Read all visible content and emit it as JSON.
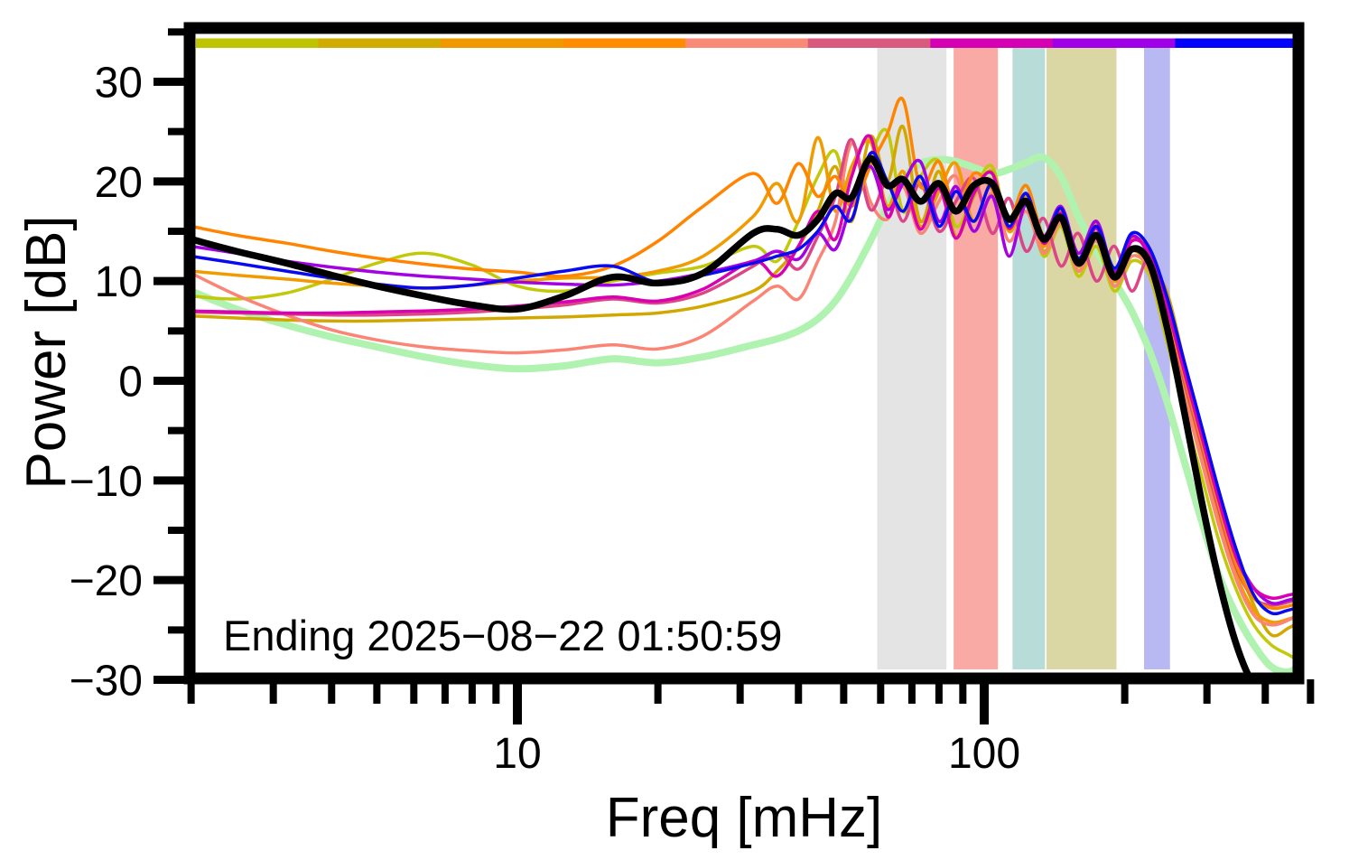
{
  "figure": {
    "annotation": "Ending 2025−08−22 01:50:59"
  },
  "chart_data": {
    "type": "line",
    "title": "",
    "xlabel": "Freq [mHz]",
    "ylabel": "Power [dB]",
    "x_scale": "log",
    "xlim_mHz": [
      2,
      480
    ],
    "ylim_dB": [
      -30,
      35
    ],
    "grid": false,
    "legend": "none",
    "x_major_ticks": [
      10,
      100
    ],
    "x_tick_labels": [
      "10",
      "100"
    ],
    "x_minor_ticks": [
      2,
      3,
      4,
      5,
      6,
      7,
      8,
      9,
      20,
      30,
      40,
      50,
      60,
      70,
      80,
      90,
      200,
      300,
      400,
      500
    ],
    "y_major_ticks": [
      30,
      20,
      10,
      0,
      -10,
      -20,
      -30
    ],
    "y_tick_labels": [
      "30",
      "20",
      "10",
      "0",
      "−10",
      "−20",
      "−30"
    ],
    "y_minor_ticks": [
      35,
      25,
      15,
      5,
      -5,
      -15,
      -25
    ],
    "annotation": "Ending 2025−08−22 01:50:59",
    "top_colorbar": {
      "description": "time-order colorbar, 9 equal segments spanning full frequency axis",
      "colors": [
        "#bfc400",
        "#d2ab00",
        "#f09800",
        "#ff8c00",
        "#f98a76",
        "#d85a7e",
        "#d400b2",
        "#9e00e8",
        "#0202fa"
      ]
    },
    "shaded_bands": [
      {
        "name": "band-gray",
        "f0_mHz": 59,
        "f1_mHz": 83,
        "color": "#e4e4e4"
      },
      {
        "name": "band-salmon",
        "f0_mHz": 86,
        "f1_mHz": 107,
        "color": "#f9aaa5"
      },
      {
        "name": "band-teal",
        "f0_mHz": 115,
        "f1_mHz": 135,
        "color": "#b8dcd7"
      },
      {
        "name": "band-olive",
        "f0_mHz": 136,
        "f1_mHz": 192,
        "color": "#dad7a5"
      },
      {
        "name": "band-lavender",
        "f0_mHz": 220,
        "f1_mHz": 250,
        "color": "#b8b8f3"
      }
    ],
    "frequencies_mHz": [
      2,
      2.5,
      3.2,
      4,
      5,
      6.3,
      8,
      10,
      12.6,
      16,
      20,
      25,
      32,
      36,
      40,
      44,
      48,
      52,
      57,
      62,
      67,
      73,
      80,
      87,
      95,
      104,
      113,
      123,
      134,
      146,
      159,
      174,
      190,
      207,
      226,
      246,
      268,
      292,
      318,
      347,
      378,
      412,
      449,
      480
    ],
    "series": [
      {
        "name": "lightgreen",
        "color": "#b0f2b0",
        "line_width": 8,
        "values": [
          9.0,
          7.2,
          5.6,
          4.4,
          3.4,
          2.4,
          1.6,
          1.2,
          1.5,
          2.2,
          1.8,
          2.4,
          3.6,
          4.2,
          5.0,
          6.2,
          8.0,
          10.5,
          14.0,
          17.5,
          20.3,
          21.8,
          22.2,
          22.0,
          21.4,
          20.8,
          21.2,
          21.9,
          22.4,
          20.5,
          16.5,
          13.0,
          10.0,
          7.0,
          3.0,
          -2.0,
          -8.0,
          -14.0,
          -19.5,
          -23.5,
          -26.5,
          -28.7,
          -29.2,
          -28.4
        ]
      },
      {
        "name": "yellowgreen",
        "color": "#c2c80a",
        "line_width": 3.5,
        "values": [
          8.5,
          8.2,
          8.8,
          10.2,
          11.8,
          12.8,
          11.6,
          9.5,
          9.0,
          10.0,
          10.8,
          11.5,
          13.5,
          12.0,
          16.0,
          20.5,
          23.0,
          17.5,
          22.5,
          25.0,
          17.0,
          20.5,
          22.0,
          15.5,
          19.0,
          21.5,
          15.0,
          18.0,
          12.5,
          15.5,
          10.5,
          13.5,
          9.0,
          12.0,
          10.5,
          4.0,
          -3.0,
          -9.5,
          -16.0,
          -21.0,
          -24.5,
          -26.5,
          -27.5,
          -28.3
        ]
      },
      {
        "name": "gold",
        "color": "#d2a800",
        "line_width": 3.5,
        "values": [
          6.5,
          6.3,
          6.1,
          6.0,
          6.0,
          6.1,
          6.2,
          6.3,
          6.4,
          6.6,
          6.8,
          7.5,
          9.0,
          11.0,
          13.5,
          17.0,
          21.5,
          16.0,
          24.5,
          20.0,
          25.5,
          16.0,
          21.0,
          14.5,
          18.5,
          21.0,
          15.5,
          18.5,
          13.0,
          16.0,
          11.0,
          14.5,
          9.5,
          13.0,
          11.5,
          9.0,
          2.0,
          -5.0,
          -12.0,
          -18.0,
          -22.5,
          -25.5,
          -24.8,
          -24.0
        ]
      },
      {
        "name": "amber",
        "color": "#f09c00",
        "line_width": 3.5,
        "values": [
          11.0,
          10.6,
          10.2,
          9.8,
          9.5,
          9.3,
          9.6,
          10.0,
          10.3,
          10.4,
          11.0,
          12.5,
          16.5,
          19.8,
          16.0,
          24.4,
          17.0,
          21.5,
          24.0,
          17.5,
          21.0,
          15.5,
          19.0,
          21.8,
          16.0,
          20.0,
          15.0,
          18.0,
          13.5,
          16.5,
          11.5,
          14.5,
          10.0,
          13.0,
          12.0,
          5.5,
          -1.0,
          -7.5,
          -14.0,
          -19.5,
          -23.0,
          -24.2,
          -23.9,
          -23.4
        ]
      },
      {
        "name": "salmon",
        "color": "#fa8575",
        "line_width": 3.5,
        "values": [
          10.8,
          8.6,
          6.6,
          5.1,
          4.1,
          3.4,
          3.0,
          2.8,
          3.1,
          3.6,
          3.2,
          4.5,
          8.0,
          9.5,
          8.2,
          12.0,
          16.0,
          23.8,
          18.0,
          16.2,
          19.5,
          14.8,
          18.0,
          20.5,
          15.0,
          18.8,
          14.0,
          17.0,
          12.8,
          15.8,
          11.0,
          14.0,
          9.5,
          12.5,
          11.0,
          5.0,
          -1.5,
          -8.0,
          -14.5,
          -20.0,
          -23.5,
          -24.5,
          -24.0,
          -23.2
        ]
      },
      {
        "name": "raspberry",
        "color": "#dc4686",
        "line_width": 3.5,
        "values": [
          6.9,
          6.8,
          6.7,
          6.6,
          6.6,
          6.7,
          6.9,
          7.2,
          7.6,
          8.2,
          7.8,
          8.8,
          11.5,
          13.0,
          11.2,
          14.5,
          18.5,
          24.2,
          17.2,
          20.0,
          16.0,
          19.8,
          15.0,
          18.0,
          20.3,
          14.8,
          18.3,
          13.0,
          16.3,
          11.5,
          14.8,
          10.0,
          13.5,
          9.0,
          12.3,
          6.5,
          0.0,
          -6.5,
          -13.0,
          -18.8,
          -21.8,
          -22.5,
          -22.2,
          -21.8
        ]
      },
      {
        "name": "orange",
        "color": "#ff8400",
        "line_width": 3.5,
        "values": [
          15.5,
          14.6,
          13.8,
          13.0,
          12.3,
          11.7,
          11.2,
          10.9,
          10.5,
          11.5,
          14.0,
          17.5,
          20.8,
          17.8,
          21.8,
          18.5,
          20.5,
          17.5,
          21.5,
          24.8,
          28.2,
          19.5,
          22.0,
          17.0,
          20.8,
          19.2,
          16.2,
          19.6,
          14.6,
          17.0,
          12.8,
          15.8,
          11.0,
          14.2,
          13.0,
          7.0,
          0.5,
          -6.0,
          -12.5,
          -18.5,
          -21.8,
          -22.8,
          -22.6,
          -22.2
        ]
      },
      {
        "name": "purple",
        "color": "#a302e2",
        "line_width": 3.5,
        "values": [
          13.5,
          12.8,
          12.0,
          11.4,
          10.9,
          10.5,
          10.2,
          9.9,
          9.7,
          9.6,
          10.0,
          10.8,
          12.0,
          13.0,
          12.2,
          14.8,
          13.2,
          17.8,
          21.5,
          17.2,
          19.8,
          22.0,
          16.0,
          19.5,
          15.0,
          18.5,
          12.5,
          17.8,
          14.5,
          17.5,
          12.8,
          16.0,
          11.0,
          14.5,
          12.5,
          8.0,
          1.5,
          -5.0,
          -11.5,
          -17.5,
          -20.8,
          -22.3,
          -22.0,
          -21.6
        ]
      },
      {
        "name": "magenta",
        "color": "#d800b2",
        "line_width": 3.5,
        "values": [
          7.0,
          6.9,
          6.8,
          6.8,
          6.9,
          7.0,
          7.2,
          7.5,
          7.9,
          8.4,
          8.0,
          9.2,
          12.0,
          10.5,
          13.5,
          17.0,
          14.2,
          20.5,
          24.5,
          16.5,
          20.3,
          15.2,
          19.3,
          14.3,
          18.8,
          20.8,
          15.3,
          18.8,
          13.8,
          16.8,
          11.8,
          15.3,
          10.3,
          14.0,
          12.8,
          7.5,
          1.0,
          -5.5,
          -12.0,
          -17.8,
          -20.8,
          -21.8,
          -21.5,
          -21.2
        ]
      },
      {
        "name": "blue",
        "color": "#0a0af0",
        "line_width": 3.5,
        "values": [
          12.5,
          11.8,
          11.0,
          10.3,
          9.7,
          9.3,
          9.6,
          10.3,
          11.0,
          11.5,
          9.9,
          10.6,
          11.8,
          12.5,
          13.2,
          15.0,
          17.5,
          16.2,
          22.8,
          20.0,
          17.0,
          20.5,
          15.5,
          19.0,
          16.0,
          19.8,
          15.5,
          18.8,
          14.0,
          17.3,
          12.3,
          15.5,
          11.3,
          14.8,
          13.3,
          8.5,
          2.0,
          -4.5,
          -11.0,
          -17.0,
          -21.5,
          -23.3,
          -23.0,
          -22.6
        ]
      },
      {
        "name": "mean-black",
        "color": "#000000",
        "line_width": 7.5,
        "values": [
          14.2,
          13.0,
          11.8,
          10.6,
          9.5,
          8.5,
          7.6,
          7.2,
          8.5,
          10.4,
          9.8,
          10.8,
          14.8,
          15.2,
          14.6,
          16.2,
          18.8,
          18.4,
          22.3,
          19.6,
          20.2,
          18.0,
          19.8,
          17.0,
          19.6,
          19.8,
          16.2,
          18.0,
          14.2,
          16.4,
          11.8,
          14.6,
          10.4,
          13.2,
          11.8,
          5.5,
          -3.0,
          -12.0,
          -20.0,
          -26.5,
          -30.5,
          -31.5,
          -32.0,
          -32.0
        ]
      }
    ]
  }
}
